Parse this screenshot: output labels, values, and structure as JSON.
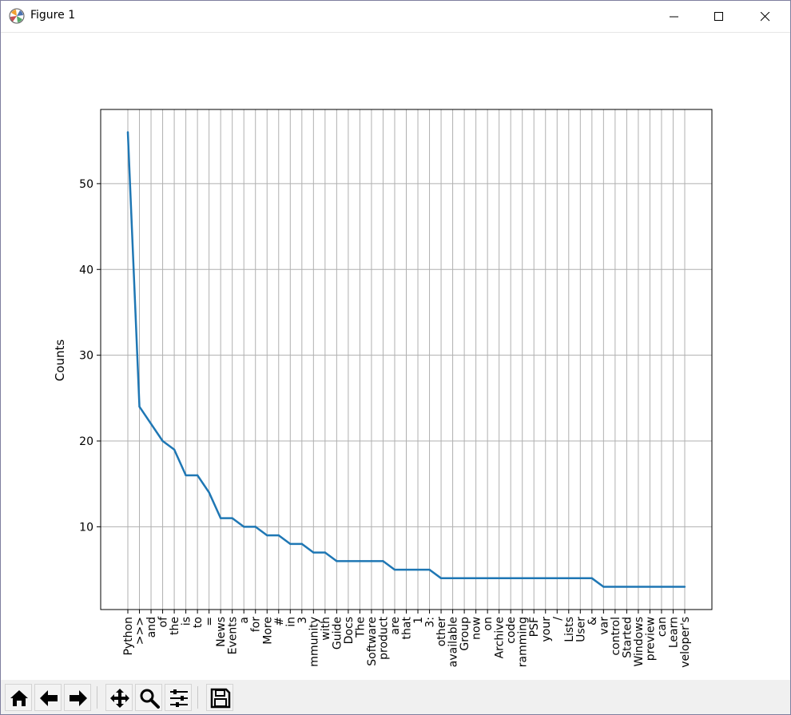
{
  "window": {
    "title": "Figure 1",
    "icons": {
      "app": "matplotlib-figure-icon",
      "minimize": "minimize-icon",
      "maximize": "maximize-icon",
      "close": "close-icon"
    }
  },
  "toolbar": {
    "buttons": [
      {
        "name": "home-button",
        "icon": "home-icon"
      },
      {
        "name": "back-button",
        "icon": "arrow-left-icon"
      },
      {
        "name": "forward-button",
        "icon": "arrow-right-icon"
      },
      {
        "name": "pan-button",
        "icon": "move-icon"
      },
      {
        "name": "zoom-button",
        "icon": "magnifier-icon"
      },
      {
        "name": "configure-subplots-button",
        "icon": "sliders-icon"
      },
      {
        "name": "save-button",
        "icon": "floppy-disk-icon"
      }
    ]
  },
  "chart_data": {
    "type": "line",
    "title": "",
    "xlabel": "",
    "ylabel": "Counts",
    "ylim": [
      0.35,
      58.65
    ],
    "yticks": [
      10,
      20,
      30,
      40,
      50
    ],
    "grid": true,
    "line_color": "#1f77b4",
    "categories": [
      "Python",
      ">>>",
      "and",
      "of",
      "the",
      "is",
      "to",
      "=",
      "News",
      "Events",
      "a",
      "for",
      "More",
      "#",
      "in",
      "3",
      "mmunity",
      "with",
      "Guide",
      "Docs",
      "The",
      "Software",
      "product",
      "are",
      "that",
      "1",
      "3:",
      "other",
      "available",
      "Group",
      "now",
      "on",
      "Archive",
      "code",
      "ramming",
      "PSF",
      "your",
      "/",
      "Lists",
      "User",
      "&",
      "var",
      "control",
      "Started",
      "Windows",
      "preview",
      "can",
      "Learn",
      "veloper's"
    ],
    "values": [
      56,
      24,
      22,
      20,
      19,
      16,
      16,
      14,
      11,
      11,
      10,
      10,
      9,
      9,
      8,
      8,
      7,
      7,
      6,
      6,
      6,
      6,
      6,
      5,
      5,
      5,
      5,
      4,
      4,
      4,
      4,
      4,
      4,
      4,
      4,
      4,
      4,
      4,
      4,
      4,
      4,
      3,
      3,
      3,
      3,
      3,
      3,
      3,
      3
    ]
  }
}
